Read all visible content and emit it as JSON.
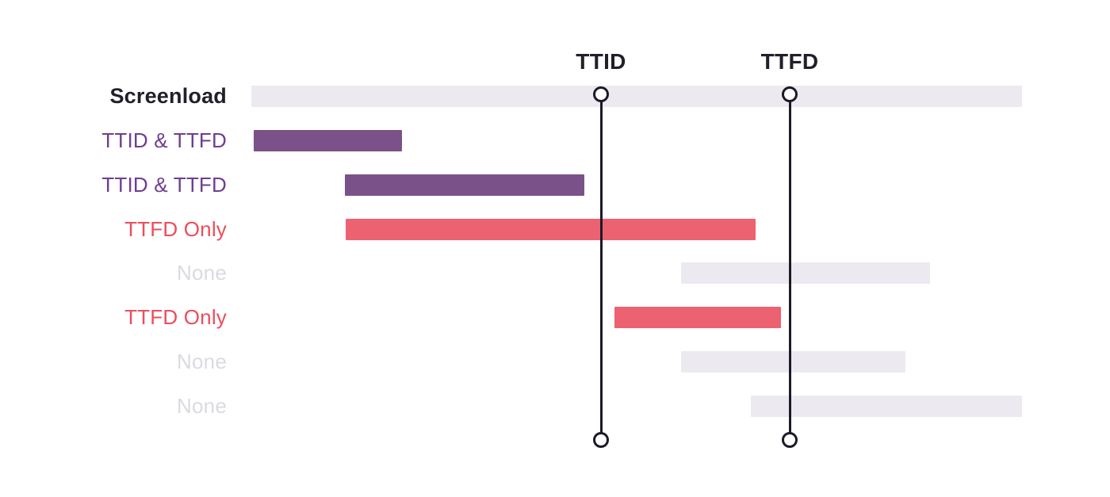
{
  "chart_data": {
    "type": "bar",
    "variant": "gantt-span-waterfall",
    "title": "",
    "xlabel": "",
    "ylabel": "",
    "grid": false,
    "legend": false,
    "axis_range_pct": [
      0,
      100
    ],
    "rows": [
      {
        "label": "Screenload",
        "category": "screenload-track",
        "style": "dark",
        "bar_color": "track",
        "start_pct": 0.0,
        "end_pct": 100.0
      },
      {
        "label": "TTID & TTFD",
        "category": "ttid-and-ttfd",
        "style": "purple",
        "bar_color": "purple",
        "start_pct": 0.3,
        "end_pct": 19.5
      },
      {
        "label": "TTID & TTFD",
        "category": "ttid-and-ttfd",
        "style": "purple",
        "bar_color": "purple",
        "start_pct": 12.1,
        "end_pct": 43.2
      },
      {
        "label": "TTFD Only",
        "category": "ttfd-only",
        "style": "red",
        "bar_color": "red",
        "start_pct": 12.2,
        "end_pct": 65.4
      },
      {
        "label": "None",
        "category": "none",
        "style": "none",
        "bar_color": "track",
        "start_pct": 55.8,
        "end_pct": 88.1
      },
      {
        "label": "TTFD Only",
        "category": "ttfd-only",
        "style": "red",
        "bar_color": "red",
        "start_pct": 47.1,
        "end_pct": 68.7
      },
      {
        "label": "None",
        "category": "none",
        "style": "none",
        "bar_color": "track",
        "start_pct": 55.8,
        "end_pct": 84.9
      },
      {
        "label": "None",
        "category": "none",
        "style": "none",
        "bar_color": "track",
        "start_pct": 64.8,
        "end_pct": 100.0
      }
    ],
    "markers": [
      {
        "label": "TTID",
        "position_pct": 45.4
      },
      {
        "label": "TTFD",
        "position_pct": 69.9
      }
    ],
    "colors": {
      "track": "#ECE9F1",
      "purple": "#7A5189",
      "red": "#EC6270",
      "label_dark": "#221E2B",
      "label_purple": "#6F3E91",
      "label_red": "#ED4C5C",
      "label_none": "#DBD9E1",
      "marker_line": "#1D1927",
      "marker_circle_fill": "#FFFFFF",
      "background": "#FFFFFF"
    }
  }
}
